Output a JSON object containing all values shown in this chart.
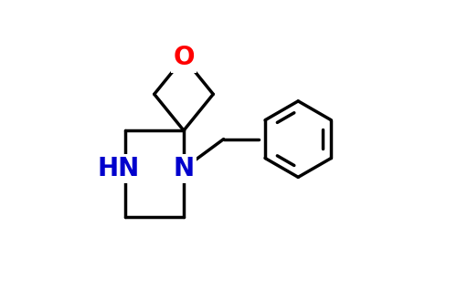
{
  "bg_color": "#ffffff",
  "bond_color": "#000000",
  "bond_lw": 2.5,
  "O_color": "#ff0000",
  "N_color": "#0000cd",
  "O_fontsize": 20,
  "N_fontsize": 20,
  "HN_fontsize": 20,
  "figsize": [
    5.12,
    3.28
  ],
  "dpi": 100,
  "xlim": [
    0.0,
    10.5
  ],
  "ylim": [
    0.0,
    8.5
  ]
}
